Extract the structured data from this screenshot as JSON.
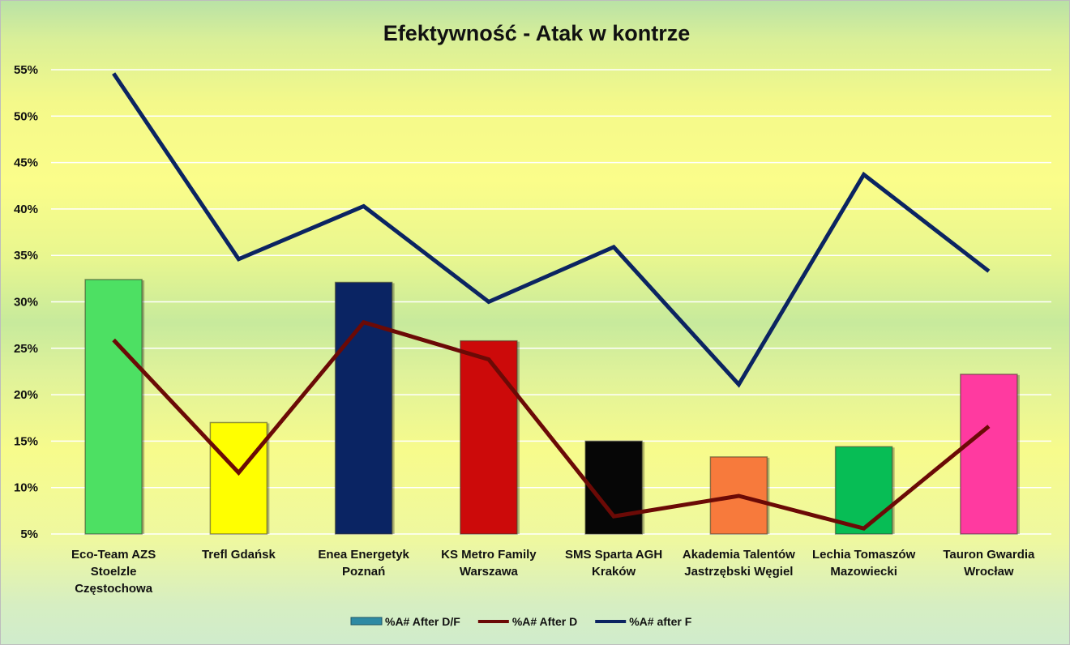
{
  "chart_data": {
    "type": "bar",
    "title": "Efektywność - Atak w kontrze",
    "xlabel": "",
    "ylabel": "",
    "ylim": [
      0.05,
      0.55
    ],
    "yticks": [
      "5%",
      "10%",
      "15%",
      "20%",
      "25%",
      "30%",
      "35%",
      "40%",
      "45%",
      "50%",
      "55%"
    ],
    "grid": true,
    "legend_position": "bottom",
    "categories": [
      [
        "Eco-Team AZS",
        "Stoelzle",
        "Częstochowa"
      ],
      [
        "Trefl Gdańsk"
      ],
      [
        "Enea Energetyk",
        "Poznań"
      ],
      [
        "KS Metro Family",
        "Warszawa"
      ],
      [
        "SMS Sparta AGH",
        "Kraków"
      ],
      [
        "Akademia Talentów",
        "Jastrzębski Węgiel"
      ],
      [
        "Lechia Tomaszów",
        "Mazowiecki"
      ],
      [
        "Tauron Gwardia",
        "Wrocław"
      ]
    ],
    "bar_colors": [
      "#4de063",
      "#ffff00",
      "#0a2463",
      "#cc0a0a",
      "#060606",
      "#f77a3c",
      "#07bd55",
      "#ff3aa0"
    ],
    "series": [
      {
        "name": "%A# After D/F",
        "type": "bar",
        "color": "#2e8aa3",
        "values": [
          0.324,
          0.17,
          0.321,
          0.258,
          0.15,
          0.133,
          0.144,
          0.222
        ]
      },
      {
        "name": "%A# After D",
        "type": "line",
        "color": "#6b0a06",
        "values": [
          0.259,
          0.116,
          0.278,
          0.238,
          0.069,
          0.091,
          0.056,
          0.166
        ]
      },
      {
        "name": "%A# after F",
        "type": "line",
        "color": "#0b2461",
        "values": [
          0.546,
          0.346,
          0.403,
          0.3,
          0.359,
          0.211,
          0.437,
          0.333
        ]
      }
    ]
  }
}
